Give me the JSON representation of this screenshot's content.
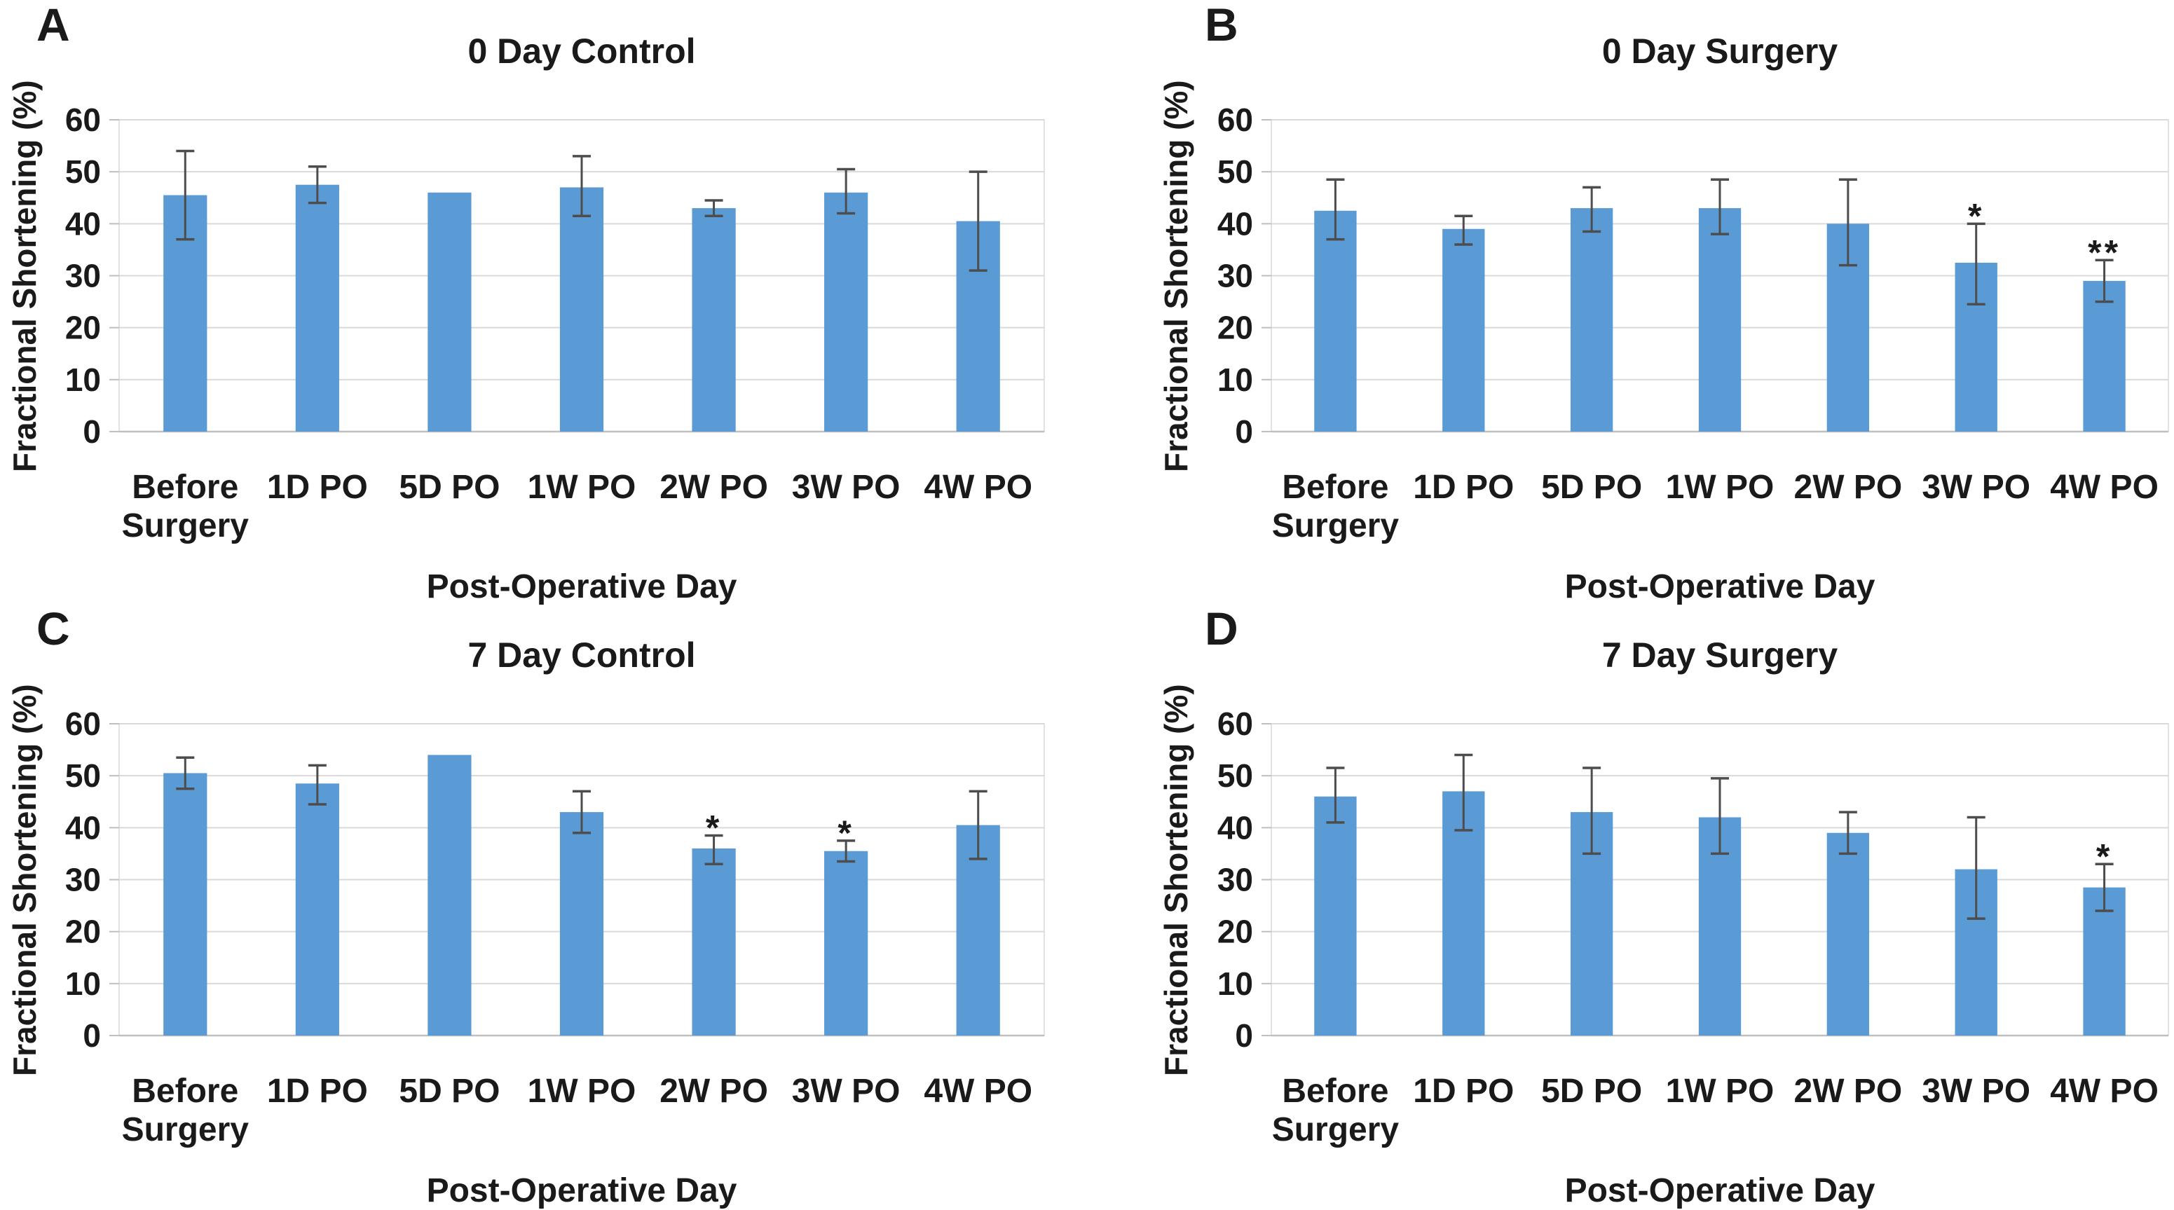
{
  "colors": {
    "bar": "#5b9bd5",
    "grid": "#d9d9d9",
    "axis": "#bfbfbf",
    "error": "#4d4d4d",
    "text": "#1a1a1a",
    "background": "#ffffff"
  },
  "chart_data": [
    {
      "type": "bar",
      "panel_label": "A",
      "title": "0 Day Control",
      "xlabel": "Post-Operative Day",
      "ylabel": "Fractional Shortening (%)",
      "categories": [
        "Before\nSurgery",
        "1D PO",
        "5D PO",
        "1W PO",
        "2W PO",
        "3W PO",
        "4W PO"
      ],
      "values": [
        45.5,
        47.5,
        46,
        47,
        43,
        46,
        40.5
      ],
      "error_low": [
        37,
        44,
        null,
        41.5,
        41.5,
        42,
        31
      ],
      "error_high": [
        54,
        51,
        null,
        53,
        44.5,
        50.5,
        50
      ],
      "significance": [
        "",
        "",
        "",
        "",
        "",
        "",
        ""
      ],
      "ylim": [
        0,
        60
      ],
      "yticks": [
        0,
        10,
        20,
        30,
        40,
        50,
        60
      ],
      "grid": true,
      "legend": "none"
    },
    {
      "type": "bar",
      "panel_label": "B",
      "title": "0 Day Surgery",
      "xlabel": "Post-Operative Day",
      "ylabel": "Fractional Shortening (%)",
      "categories": [
        "Before\nSurgery",
        "1D PO",
        "5D PO",
        "1W PO",
        "2W PO",
        "3W PO",
        "4W PO"
      ],
      "values": [
        42.5,
        39,
        43,
        43,
        40,
        32.5,
        29
      ],
      "error_low": [
        37,
        36,
        38.5,
        38,
        32,
        24.5,
        25
      ],
      "error_high": [
        48.5,
        41.5,
        47,
        48.5,
        48.5,
        40,
        33
      ],
      "significance": [
        "",
        "",
        "",
        "",
        "",
        "*",
        "**"
      ],
      "ylim": [
        0,
        60
      ],
      "yticks": [
        0,
        10,
        20,
        30,
        40,
        50,
        60
      ],
      "grid": true,
      "legend": "none"
    },
    {
      "type": "bar",
      "panel_label": "C",
      "title": "7 Day Control",
      "xlabel": "Post-Operative Day",
      "ylabel": "Fractional Shortening (%)",
      "categories": [
        "Before\nSurgery",
        "1D PO",
        "5D PO",
        "1W PO",
        "2W PO",
        "3W PO",
        "4W PO"
      ],
      "values": [
        50.5,
        48.5,
        54,
        43,
        36,
        35.5,
        40.5
      ],
      "error_low": [
        47.5,
        44.5,
        null,
        39,
        33,
        33.5,
        34
      ],
      "error_high": [
        53.5,
        52,
        null,
        47,
        38.5,
        37.5,
        47
      ],
      "significance": [
        "",
        "",
        "",
        "",
        "*",
        "*",
        ""
      ],
      "ylim": [
        0,
        60
      ],
      "yticks": [
        0,
        10,
        20,
        30,
        40,
        50,
        60
      ],
      "grid": true,
      "legend": "none"
    },
    {
      "type": "bar",
      "panel_label": "D",
      "title": "7 Day Surgery",
      "xlabel": "Post-Operative Day",
      "ylabel": "Fractional Shortening (%)",
      "categories": [
        "Before\nSurgery",
        "1D PO",
        "5D PO",
        "1W PO",
        "2W PO",
        "3W PO",
        "4W PO"
      ],
      "values": [
        46,
        47,
        43,
        42,
        39,
        32,
        28.5
      ],
      "error_low": [
        41,
        39.5,
        35,
        35,
        35,
        22.5,
        24
      ],
      "error_high": [
        51.5,
        54,
        51.5,
        49.5,
        43,
        42,
        33
      ],
      "significance": [
        "",
        "",
        "",
        "",
        "",
        "",
        "*"
      ],
      "ylim": [
        0,
        60
      ],
      "yticks": [
        0,
        10,
        20,
        30,
        40,
        50,
        60
      ],
      "grid": true,
      "legend": "none"
    }
  ]
}
